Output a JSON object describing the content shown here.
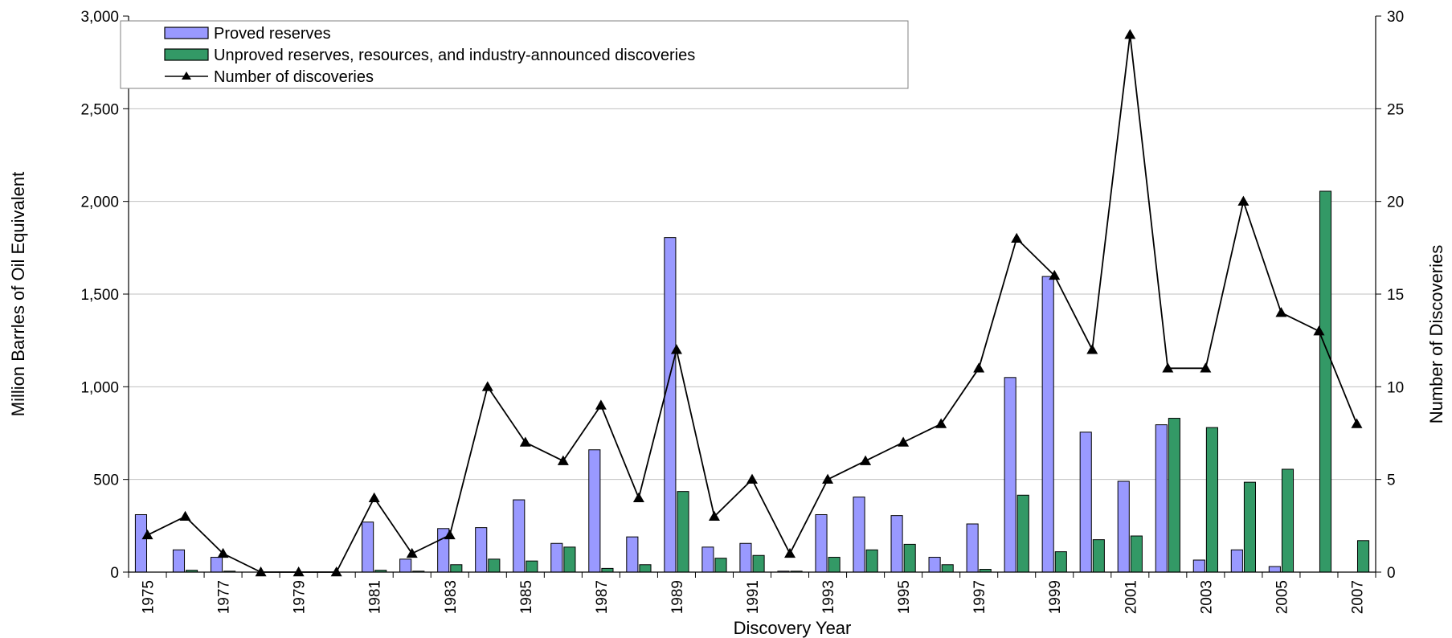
{
  "chart_data": {
    "type": "bar",
    "title": "",
    "xlabel": "Discovery Year",
    "ylabel": "Million Barrles of Oil Equivalent",
    "ylabel_right": "Number of Discoveries",
    "ylim": [
      0,
      3000
    ],
    "ylim_right": [
      0,
      30
    ],
    "yticks": [
      "0",
      "500",
      "1,000",
      "1,500",
      "2,000",
      "2,500",
      "3,000"
    ],
    "yticks_right": [
      "0",
      "5",
      "10",
      "15",
      "20",
      "25",
      "30"
    ],
    "tick_label_years": [
      "1975",
      "1977",
      "1979",
      "1981",
      "1983",
      "1985",
      "1987",
      "1989",
      "1991",
      "1993",
      "1995",
      "1997",
      "1999",
      "2001",
      "2003",
      "2005",
      "2007"
    ],
    "categories": [
      1975,
      1976,
      1977,
      1978,
      1979,
      1980,
      1981,
      1982,
      1983,
      1984,
      1985,
      1986,
      1987,
      1988,
      1989,
      1990,
      1991,
      1992,
      1993,
      1994,
      1995,
      1996,
      1997,
      1998,
      1999,
      2000,
      2001,
      2002,
      2003,
      2004,
      2005,
      2006,
      2007
    ],
    "grid": true,
    "legend_position": "top-left",
    "series": [
      {
        "name": "Proved reserves",
        "kind": "bar",
        "axis": "left",
        "color": "#9999ff",
        "values": [
          310,
          120,
          80,
          0,
          0,
          0,
          270,
          70,
          235,
          240,
          390,
          155,
          660,
          190,
          1805,
          135,
          155,
          5,
          310,
          405,
          305,
          80,
          260,
          1050,
          1595,
          755,
          490,
          795,
          65,
          120,
          30,
          0,
          0
        ]
      },
      {
        "name": "Unproved reserves, resources, and industry-announced discoveries",
        "kind": "bar",
        "axis": "left",
        "color": "#339966",
        "values": [
          0,
          10,
          5,
          0,
          0,
          0,
          10,
          5,
          40,
          70,
          60,
          135,
          20,
          40,
          435,
          75,
          90,
          5,
          80,
          120,
          150,
          40,
          15,
          415,
          110,
          175,
          195,
          830,
          780,
          485,
          555,
          2055,
          170
        ]
      },
      {
        "name": "Number of discoveries",
        "kind": "line",
        "axis": "right",
        "color": "#000000",
        "marker": "triangle",
        "values": [
          2,
          3,
          1,
          0,
          0,
          0,
          4,
          1,
          2,
          10,
          7,
          6,
          9,
          4,
          12,
          3,
          5,
          1,
          5,
          6,
          7,
          8,
          11,
          18,
          16,
          12,
          29,
          11,
          11,
          20,
          14,
          13,
          8
        ]
      }
    ]
  }
}
